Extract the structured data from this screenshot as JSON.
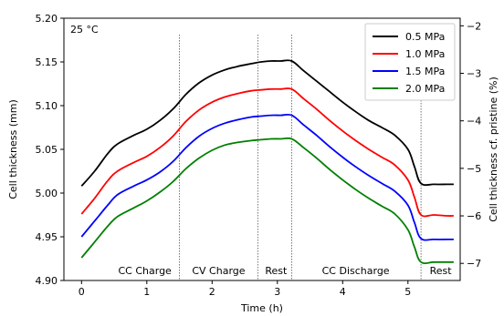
{
  "chart_data": {
    "type": "line",
    "annotation": "25 °C",
    "xlabel": "Time (h)",
    "ylabel": "Cell thickness (mm)",
    "y2label": "Cell thickness cf. pristine (%)",
    "xlim": [
      -0.27,
      5.8
    ],
    "ylim": [
      4.9,
      5.2
    ],
    "y2lim": [
      -7.36,
      -1.84
    ],
    "xticks": [
      0,
      1,
      2,
      3,
      4,
      5
    ],
    "yticks": [
      4.9,
      4.95,
      5.0,
      5.05,
      5.1,
      5.15,
      5.2
    ],
    "y2ticks": [
      -7,
      -6,
      -5,
      -4,
      -3,
      -2
    ],
    "legend_position": "top-right",
    "phase_boundaries": [
      1.5,
      2.7,
      3.22,
      5.2
    ],
    "phases": [
      {
        "label": "CC Charge",
        "x": 0.97
      },
      {
        "label": "CV Charge",
        "x": 2.1
      },
      {
        "label": "Rest",
        "x": 2.98
      },
      {
        "label": "CC Discharge",
        "x": 4.2
      },
      {
        "label": "Rest",
        "x": 5.5
      }
    ],
    "x": [
      0,
      0.2,
      0.4,
      0.55,
      0.8,
      1.0,
      1.2,
      1.4,
      1.6,
      1.8,
      2.0,
      2.2,
      2.4,
      2.6,
      2.75,
      2.9,
      3.05,
      3.22,
      3.4,
      3.6,
      3.8,
      4.0,
      4.2,
      4.4,
      4.6,
      4.8,
      5.0,
      5.1,
      5.2,
      5.4,
      5.6,
      5.7
    ],
    "series": [
      {
        "name": "0.5 MPa",
        "color": "#000000",
        "values": [
          5.008,
          5.025,
          5.045,
          5.056,
          5.066,
          5.073,
          5.083,
          5.096,
          5.113,
          5.126,
          5.135,
          5.141,
          5.145,
          5.148,
          5.15,
          5.151,
          5.151,
          5.151,
          5.14,
          5.128,
          5.116,
          5.104,
          5.093,
          5.083,
          5.075,
          5.066,
          5.05,
          5.03,
          5.011,
          5.01,
          5.01,
          5.01
        ]
      },
      {
        "name": "1.0 MPa",
        "color": "#ff0000",
        "values": [
          4.976,
          4.994,
          5.014,
          5.025,
          5.035,
          5.042,
          5.052,
          5.065,
          5.082,
          5.095,
          5.104,
          5.11,
          5.114,
          5.117,
          5.118,
          5.119,
          5.119,
          5.119,
          5.108,
          5.096,
          5.083,
          5.071,
          5.06,
          5.05,
          5.041,
          5.032,
          5.015,
          4.995,
          4.975,
          4.975,
          4.974,
          4.974
        ]
      },
      {
        "name": "1.5 MPa",
        "color": "#0000ff",
        "values": [
          4.95,
          4.968,
          4.986,
          4.998,
          5.008,
          5.015,
          5.024,
          5.036,
          5.052,
          5.065,
          5.074,
          5.08,
          5.084,
          5.087,
          5.088,
          5.089,
          5.089,
          5.089,
          5.078,
          5.066,
          5.053,
          5.041,
          5.03,
          5.02,
          5.011,
          5.002,
          4.986,
          4.966,
          4.948,
          4.947,
          4.947,
          4.947
        ]
      },
      {
        "name": "2.0 MPa",
        "color": "#008000",
        "values": [
          4.926,
          4.944,
          4.962,
          4.973,
          4.983,
          4.991,
          5.001,
          5.013,
          5.028,
          5.04,
          5.049,
          5.055,
          5.058,
          5.06,
          5.061,
          5.062,
          5.062,
          5.062,
          5.052,
          5.04,
          5.027,
          5.015,
          5.004,
          4.994,
          4.985,
          4.976,
          4.958,
          4.938,
          4.921,
          4.921,
          4.921,
          4.921
        ]
      }
    ]
  }
}
